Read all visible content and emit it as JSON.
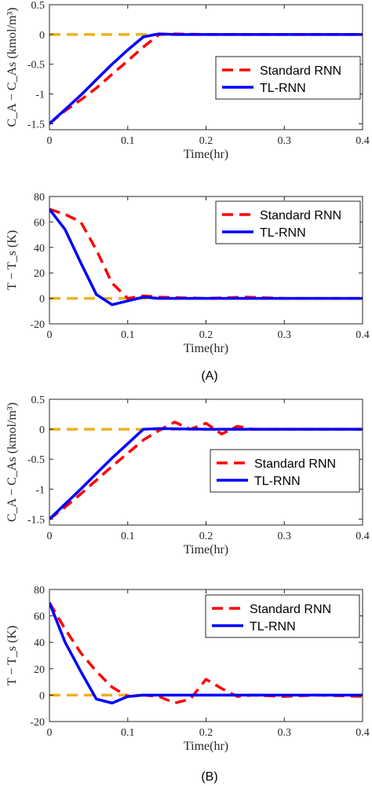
{
  "panel_captions": [
    "(A)",
    "(B)"
  ],
  "series_styles": {
    "reference": {
      "color": "#EDB120",
      "dash": "14,8",
      "width": 3.5
    },
    "Standard RNN": {
      "color": "#FF0000",
      "dash": "14,8",
      "width": 3.5
    },
    "TL-RNN": {
      "color": "#0000FF",
      "dash": "",
      "width": 3.5
    }
  },
  "chart_data": [
    {
      "type": "line",
      "xlabel": "Time(hr)",
      "ylabel": "C_A − C_As (kmol/m³)",
      "xlim": [
        0,
        0.4
      ],
      "ylim": [
        -1.6,
        0.5
      ],
      "xticks": [
        "0",
        "0.1",
        "0.2",
        "0.3",
        "0.4"
      ],
      "xtick_values": [
        0,
        0.1,
        0.2,
        0.3,
        0.4
      ],
      "yticks": [
        "0.5",
        "0",
        "-0.5",
        "-1",
        "-1.5"
      ],
      "ytick_values": [
        0.5,
        0,
        -0.5,
        -1,
        -1.5
      ],
      "legend": [
        "Standard RNN",
        "TL-RNN"
      ],
      "legend_position": "right",
      "series": [
        {
          "role": "reference",
          "x": [
            0,
            0.4
          ],
          "y": [
            0,
            0
          ]
        },
        {
          "name": "Standard RNN",
          "x": [
            0,
            0.02,
            0.04,
            0.06,
            0.08,
            0.1,
            0.12,
            0.14,
            0.16,
            0.2,
            0.3,
            0.4
          ],
          "y": [
            -1.5,
            -1.28,
            -1.1,
            -0.9,
            -0.67,
            -0.44,
            -0.21,
            0.0,
            0.01,
            0.0,
            0.0,
            0.0
          ]
        },
        {
          "name": "TL-RNN",
          "x": [
            0,
            0.02,
            0.04,
            0.06,
            0.08,
            0.1,
            0.12,
            0.14,
            0.16,
            0.2,
            0.3,
            0.4
          ],
          "y": [
            -1.5,
            -1.26,
            -1.02,
            -0.76,
            -0.5,
            -0.26,
            -0.04,
            0.01,
            0.0,
            0.0,
            0.0,
            0.0
          ]
        }
      ]
    },
    {
      "type": "line",
      "xlabel": "Time(hr)",
      "ylabel": "T − T_s (K)",
      "xlim": [
        0,
        0.4
      ],
      "ylim": [
        -20,
        80
      ],
      "xticks": [
        "0",
        "0.1",
        "0.2",
        "0.3",
        "0.4"
      ],
      "xtick_values": [
        0,
        0.1,
        0.2,
        0.3,
        0.4
      ],
      "yticks": [
        "80",
        "60",
        "40",
        "20",
        "0",
        "-20"
      ],
      "ytick_values": [
        80,
        60,
        40,
        20,
        0,
        -20
      ],
      "legend": [
        "Standard RNN",
        "TL-RNN"
      ],
      "legend_position": "top-right",
      "series": [
        {
          "role": "reference",
          "x": [
            0,
            0.4
          ],
          "y": [
            0,
            0
          ]
        },
        {
          "name": "Standard RNN",
          "x": [
            0,
            0.02,
            0.04,
            0.06,
            0.08,
            0.1,
            0.12,
            0.14,
            0.2,
            0.25,
            0.3,
            0.4
          ],
          "y": [
            70,
            66,
            60,
            38,
            12,
            0,
            2,
            1,
            0,
            1,
            0,
            0
          ]
        },
        {
          "name": "TL-RNN",
          "x": [
            0,
            0.02,
            0.04,
            0.06,
            0.08,
            0.1,
            0.12,
            0.14,
            0.2,
            0.3,
            0.4
          ],
          "y": [
            70,
            54,
            28,
            3,
            -5,
            -2,
            1,
            0,
            0,
            0,
            0
          ]
        }
      ]
    },
    {
      "type": "line",
      "xlabel": "Time(hr)",
      "ylabel": "C_A − C_As (kmol/m³)",
      "xlim": [
        0,
        0.4
      ],
      "ylim": [
        -1.6,
        0.5
      ],
      "xticks": [
        "0",
        "0.1",
        "0.2",
        "0.3",
        "0.4"
      ],
      "xtick_values": [
        0,
        0.1,
        0.2,
        0.3,
        0.4
      ],
      "yticks": [
        "0.5",
        "0",
        "-0.5",
        "-1",
        "-1.5"
      ],
      "ytick_values": [
        0.5,
        0,
        -0.5,
        -1,
        -1.5
      ],
      "legend": [
        "Standard RNN",
        "TL-RNN"
      ],
      "legend_position": "right",
      "series": [
        {
          "role": "reference",
          "x": [
            0,
            0.4
          ],
          "y": [
            0,
            0
          ]
        },
        {
          "name": "Standard RNN",
          "x": [
            0,
            0.02,
            0.04,
            0.06,
            0.08,
            0.1,
            0.12,
            0.14,
            0.16,
            0.18,
            0.2,
            0.22,
            0.24,
            0.26,
            0.3,
            0.4
          ],
          "y": [
            -1.5,
            -1.3,
            -1.08,
            -0.85,
            -0.62,
            -0.4,
            -0.18,
            -0.02,
            0.12,
            0.0,
            0.1,
            -0.08,
            0.05,
            0.0,
            0.0,
            0.0
          ]
        },
        {
          "name": "TL-RNN",
          "x": [
            0,
            0.02,
            0.04,
            0.06,
            0.08,
            0.1,
            0.12,
            0.14,
            0.2,
            0.3,
            0.4
          ],
          "y": [
            -1.5,
            -1.25,
            -1.0,
            -0.74,
            -0.48,
            -0.24,
            0.0,
            0.01,
            0.0,
            0.0,
            0.0
          ]
        }
      ]
    },
    {
      "type": "line",
      "xlabel": "Time(hr)",
      "ylabel": "T − T_s (K)",
      "xlim": [
        0,
        0.4
      ],
      "ylim": [
        -20,
        80
      ],
      "xticks": [
        "0",
        "0.1",
        "0.2",
        "0.3",
        "0.4"
      ],
      "xtick_values": [
        0,
        0.1,
        0.2,
        0.3,
        0.4
      ],
      "yticks": [
        "80",
        "60",
        "40",
        "20",
        "0",
        "-20"
      ],
      "ytick_values": [
        80,
        60,
        40,
        20,
        0,
        -20
      ],
      "legend": [
        "Standard RNN",
        "TL-RNN"
      ],
      "legend_position": "top-right",
      "series": [
        {
          "role": "reference",
          "x": [
            0,
            0.4
          ],
          "y": [
            0,
            0
          ]
        },
        {
          "name": "Standard RNN",
          "x": [
            0,
            0.02,
            0.04,
            0.06,
            0.08,
            0.1,
            0.12,
            0.14,
            0.16,
            0.18,
            0.2,
            0.22,
            0.24,
            0.26,
            0.3,
            0.34,
            0.4
          ],
          "y": [
            70,
            50,
            32,
            18,
            6,
            -1,
            0,
            -1,
            -6,
            -3,
            12,
            5,
            -1,
            0,
            -1,
            0,
            -1
          ]
        },
        {
          "name": "TL-RNN",
          "x": [
            0,
            0.02,
            0.04,
            0.06,
            0.08,
            0.1,
            0.12,
            0.14,
            0.2,
            0.3,
            0.4
          ],
          "y": [
            70,
            40,
            18,
            -3,
            -6,
            -1,
            0,
            0,
            0,
            0,
            0
          ]
        }
      ]
    }
  ]
}
